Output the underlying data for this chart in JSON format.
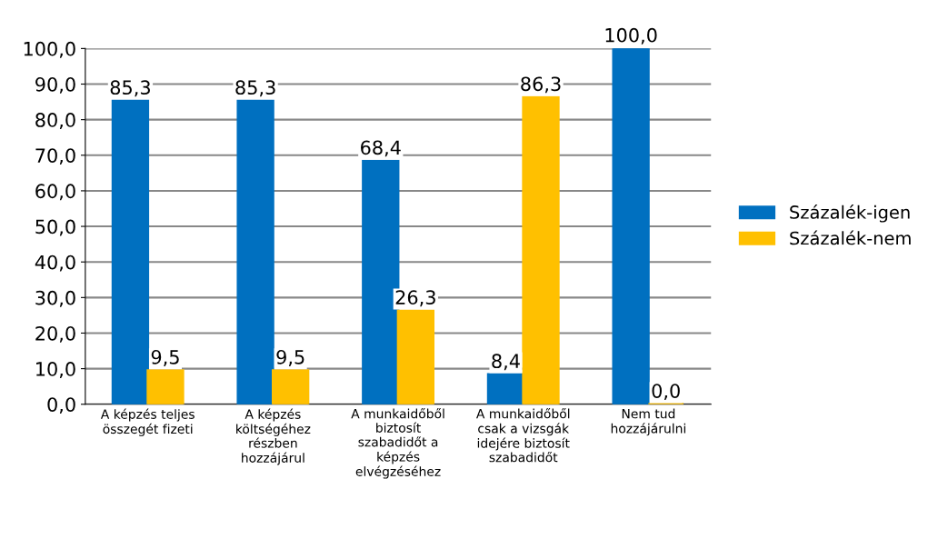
{
  "chart_data": {
    "type": "bar",
    "categories": [
      "A képzés teljes\nösszegét fizeti",
      "A képzés\nköltségéhez\nrészben\nhozzájárul",
      "A munkaidőből\nbiztosít\nszabadidőt a\nképzés\nelvégzéséhez",
      "A munkaidőből\ncsak a vizsgák\nidejére biztosít\nszabadidőt",
      "Nem tud\nhozzájárulni"
    ],
    "series": [
      {
        "name": "Százalék-igen",
        "color": "#0070c0",
        "values": [
          85.3,
          85.3,
          68.4,
          8.4,
          100.0
        ],
        "value_labels": [
          "85,3",
          "85,3",
          "68,4",
          "8,4",
          "100,0"
        ]
      },
      {
        "name": "Százalék-nem",
        "color": "#ffc000",
        "values": [
          9.5,
          9.5,
          26.3,
          86.3,
          0.0
        ],
        "value_labels": [
          "9,5",
          "9,5",
          "26,3",
          "86,3",
          "0,0"
        ]
      }
    ],
    "ylim": [
      0,
      100
    ],
    "yticks": [
      {
        "value": 0,
        "label": "0,0"
      },
      {
        "value": 10,
        "label": "10,0"
      },
      {
        "value": 20,
        "label": "20,0"
      },
      {
        "value": 30,
        "label": "30,0"
      },
      {
        "value": 40,
        "label": "40,0"
      },
      {
        "value": 50,
        "label": "50,0"
      },
      {
        "value": 60,
        "label": "60,0"
      },
      {
        "value": 70,
        "label": "70,0"
      },
      {
        "value": 80,
        "label": "80,0"
      },
      {
        "value": 90,
        "label": "90,0"
      },
      {
        "value": 100,
        "label": "100,0"
      }
    ],
    "grid": "y",
    "legend": "right"
  }
}
